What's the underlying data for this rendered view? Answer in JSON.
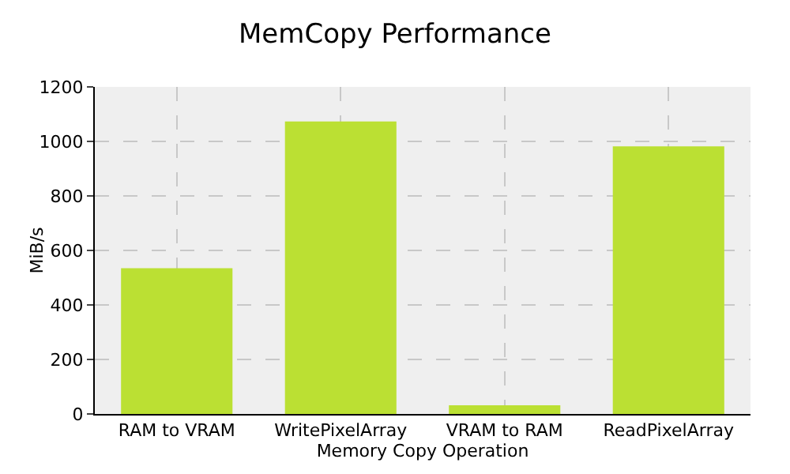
{
  "chart_data": {
    "type": "bar",
    "title": "MemCopy Performance",
    "xlabel": "Memory Copy Operation",
    "ylabel": "MiB/s",
    "categories": [
      "RAM to VRAM",
      "WritePixelArray",
      "VRAM to RAM",
      "ReadPixelArray"
    ],
    "values": [
      535,
      1073,
      32,
      982
    ],
    "color": "#bbe033",
    "ylim": [
      0,
      1200
    ],
    "yticks": [
      0,
      200,
      400,
      600,
      800,
      1000,
      1200
    ],
    "grid": true
  }
}
